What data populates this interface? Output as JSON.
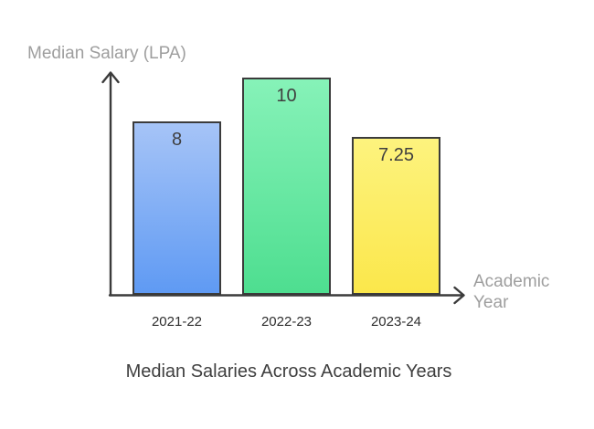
{
  "chart_data": {
    "type": "bar",
    "title": "Median Salaries Across Academic Years",
    "xlabel": "Academic Year",
    "ylabel": "Median Salary (LPA)",
    "categories": [
      "2021-22",
      "2022-23",
      "2023-24"
    ],
    "values": [
      8,
      10,
      7.25
    ],
    "value_labels": [
      "8",
      "10",
      "7.25"
    ],
    "ylim": [
      0,
      10
    ],
    "grid": false,
    "legend": false,
    "bar_gradients": [
      {
        "top": "#a6c4f7",
        "bottom": "#5f9af3"
      },
      {
        "top": "#86f2b8",
        "bottom": "#4ede90"
      },
      {
        "top": "#fdf37e",
        "bottom": "#fbe74b"
      }
    ]
  },
  "colors": {
    "background": "#ffffff",
    "axis": "#3b3b3b",
    "bar_border": "#3b3b3b",
    "axis_label_text": "#9e9e9e",
    "tick_label_text": "#2e2e2e",
    "value_label_text": "#3f3f3f",
    "title_text": "#3f3f3f"
  }
}
